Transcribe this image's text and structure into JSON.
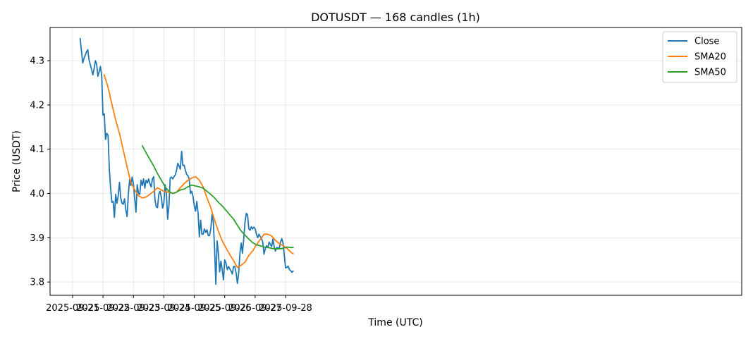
{
  "chart_data": {
    "type": "line",
    "title": "DOTUSDT — 168 candles (1h)",
    "xlabel": "Time (UTC)",
    "ylabel": "Price (USDT)",
    "x_start": "2025-09-21 06:00",
    "x_interval_hours": 1,
    "x_tick_labels": [
      "2025-09-21",
      "2025-09-22",
      "2025-09-23",
      "2025-09-24",
      "2025-09-25",
      "2025-09-26",
      "2025-09-27",
      "2025-09-28"
    ],
    "y_tick_labels": [
      "3.8",
      "3.9",
      "4.0",
      "4.1",
      "4.2",
      "4.3"
    ],
    "ylim": [
      3.77,
      4.375
    ],
    "grid": true,
    "legend_position": "top-right",
    "series": [
      {
        "name": "Close",
        "color": "#1f77b4",
        "start_index": 0,
        "anchors": [
          [
            0,
            4.35
          ],
          [
            2,
            4.295
          ],
          [
            3,
            4.305
          ],
          [
            5,
            4.32
          ],
          [
            6,
            4.325
          ],
          [
            7,
            4.302
          ],
          [
            9,
            4.28
          ],
          [
            10,
            4.268
          ],
          [
            11,
            4.282
          ],
          [
            12,
            4.3
          ],
          [
            13,
            4.292
          ],
          [
            14,
            4.265
          ],
          [
            15,
            4.275
          ],
          [
            16,
            4.287
          ],
          [
            17,
            4.265
          ],
          [
            18,
            4.177
          ],
          [
            19,
            4.18
          ],
          [
            20,
            4.122
          ],
          [
            21,
            4.136
          ],
          [
            22,
            4.132
          ],
          [
            23,
            4.055
          ],
          [
            24,
            4.012
          ],
          [
            25,
            3.98
          ],
          [
            26,
            3.982
          ],
          [
            27,
            3.946
          ],
          [
            28,
            3.998
          ],
          [
            29,
            3.978
          ],
          [
            30,
            3.995
          ],
          [
            31,
            4.025
          ],
          [
            32,
            3.99
          ],
          [
            33,
            3.978
          ],
          [
            34,
            3.976
          ],
          [
            35,
            3.988
          ],
          [
            36,
            3.963
          ],
          [
            37,
            3.948
          ],
          [
            38,
            3.998
          ],
          [
            39,
            4.032
          ],
          [
            40,
            4.018
          ],
          [
            41,
            4.037
          ],
          [
            42,
            4.022
          ],
          [
            43,
            3.988
          ],
          [
            44,
            3.958
          ],
          [
            45,
            4.02
          ],
          [
            46,
            4.0
          ],
          [
            47,
            3.998
          ],
          [
            48,
            4.03
          ],
          [
            49,
            4.018
          ],
          [
            50,
            4.033
          ],
          [
            51,
            4.012
          ],
          [
            52,
            4.03
          ],
          [
            53,
            4.024
          ],
          [
            54,
            4.033
          ],
          [
            55,
            4.022
          ],
          [
            56,
            4.015
          ],
          [
            57,
            4.033
          ],
          [
            58,
            4.038
          ],
          [
            59,
            3.985
          ],
          [
            60,
            3.97
          ],
          [
            61,
            3.968
          ],
          [
            62,
            3.998
          ],
          [
            63,
            4.005
          ],
          [
            64,
            3.992
          ],
          [
            65,
            3.967
          ],
          [
            66,
            3.978
          ],
          [
            67,
            4.02
          ],
          [
            68,
            4.0
          ],
          [
            69,
            3.942
          ],
          [
            70,
            3.972
          ],
          [
            71,
            4.035
          ],
          [
            72,
            4.037
          ],
          [
            73,
            4.033
          ],
          [
            74,
            4.038
          ],
          [
            75,
            4.042
          ],
          [
            76,
            4.052
          ],
          [
            77,
            4.068
          ],
          [
            78,
            4.062
          ],
          [
            79,
            4.055
          ],
          [
            80,
            4.095
          ],
          [
            81,
            4.063
          ],
          [
            82,
            4.064
          ],
          [
            83,
            4.052
          ],
          [
            84,
            4.043
          ],
          [
            85,
            4.04
          ],
          [
            86,
            4.033
          ],
          [
            87,
            4.0
          ],
          [
            88,
            4.005
          ],
          [
            89,
            3.993
          ],
          [
            90,
            3.972
          ],
          [
            91,
            3.96
          ],
          [
            92,
            3.982
          ],
          [
            93,
            3.955
          ],
          [
            94,
            3.902
          ],
          [
            95,
            3.94
          ],
          [
            96,
            3.908
          ],
          [
            97,
            3.908
          ],
          [
            98,
            3.92
          ],
          [
            99,
            3.912
          ],
          [
            100,
            3.918
          ],
          [
            101,
            3.905
          ],
          [
            102,
            3.905
          ],
          [
            103,
            3.92
          ],
          [
            104,
            3.952
          ],
          [
            105,
            3.935
          ],
          [
            106,
            3.875
          ],
          [
            107,
            3.795
          ],
          [
            108,
            3.893
          ],
          [
            109,
            3.865
          ],
          [
            110,
            3.823
          ],
          [
            111,
            3.847
          ],
          [
            112,
            3.828
          ],
          [
            113,
            3.805
          ],
          [
            114,
            3.85
          ],
          [
            115,
            3.843
          ],
          [
            116,
            3.828
          ],
          [
            117,
            3.835
          ],
          [
            118,
            3.83
          ],
          [
            119,
            3.825
          ],
          [
            120,
            3.818
          ],
          [
            121,
            3.835
          ],
          [
            122,
            3.835
          ],
          [
            123,
            3.82
          ],
          [
            124,
            3.797
          ],
          [
            125,
            3.82
          ],
          [
            126,
            3.865
          ],
          [
            127,
            3.888
          ],
          [
            128,
            3.865
          ],
          [
            129,
            3.898
          ],
          [
            130,
            3.935
          ],
          [
            131,
            3.955
          ],
          [
            132,
            3.952
          ],
          [
            133,
            3.92
          ],
          [
            134,
            3.917
          ],
          [
            135,
            3.925
          ],
          [
            136,
            3.92
          ],
          [
            137,
            3.924
          ],
          [
            138,
            3.92
          ],
          [
            139,
            3.908
          ],
          [
            140,
            3.9
          ],
          [
            141,
            3.908
          ],
          [
            142,
            3.903
          ],
          [
            143,
            3.898
          ],
          [
            144,
            3.89
          ],
          [
            145,
            3.863
          ],
          [
            146,
            3.875
          ],
          [
            147,
            3.882
          ],
          [
            148,
            3.878
          ],
          [
            149,
            3.89
          ],
          [
            150,
            3.885
          ],
          [
            151,
            3.88
          ],
          [
            152,
            3.897
          ],
          [
            153,
            3.88
          ],
          [
            154,
            3.87
          ],
          [
            155,
            3.878
          ],
          [
            156,
            3.877
          ],
          [
            157,
            3.876
          ],
          [
            158,
            3.89
          ],
          [
            159,
            3.898
          ],
          [
            160,
            3.888
          ],
          [
            161,
            3.86
          ],
          [
            162,
            3.832
          ],
          [
            163,
            3.833
          ],
          [
            164,
            3.836
          ],
          [
            165,
            3.828
          ],
          [
            166,
            3.826
          ],
          [
            167,
            3.822
          ],
          [
            168,
            3.825
          ]
        ]
      },
      {
        "name": "SMA20",
        "color": "#ff7f0e",
        "start_index": 19,
        "anchors": [
          [
            19,
            4.268
          ],
          [
            22,
            4.24
          ],
          [
            25,
            4.202
          ],
          [
            28,
            4.166
          ],
          [
            31,
            4.136
          ],
          [
            34,
            4.098
          ],
          [
            37,
            4.06
          ],
          [
            40,
            4.025
          ],
          [
            43,
            4.008
          ],
          [
            46,
            3.995
          ],
          [
            49,
            3.99
          ],
          [
            52,
            3.992
          ],
          [
            55,
            3.998
          ],
          [
            58,
            4.005
          ],
          [
            61,
            4.013
          ],
          [
            64,
            4.008
          ],
          [
            67,
            4.004
          ],
          [
            70,
            4.003
          ],
          [
            73,
            4.0
          ],
          [
            76,
            4.003
          ],
          [
            79,
            4.013
          ],
          [
            82,
            4.022
          ],
          [
            85,
            4.03
          ],
          [
            88,
            4.035
          ],
          [
            91,
            4.038
          ],
          [
            94,
            4.03
          ],
          [
            97,
            4.015
          ],
          [
            100,
            3.99
          ],
          [
            103,
            3.968
          ],
          [
            106,
            3.94
          ],
          [
            109,
            3.915
          ],
          [
            112,
            3.893
          ],
          [
            115,
            3.877
          ],
          [
            118,
            3.862
          ],
          [
            121,
            3.848
          ],
          [
            124,
            3.833
          ],
          [
            127,
            3.838
          ],
          [
            130,
            3.845
          ],
          [
            133,
            3.86
          ],
          [
            136,
            3.87
          ],
          [
            139,
            3.884
          ],
          [
            142,
            3.896
          ],
          [
            145,
            3.908
          ],
          [
            148,
            3.908
          ],
          [
            151,
            3.904
          ],
          [
            154,
            3.894
          ],
          [
            157,
            3.887
          ],
          [
            160,
            3.882
          ],
          [
            163,
            3.876
          ],
          [
            166,
            3.868
          ],
          [
            168,
            3.864
          ]
        ]
      },
      {
        "name": "SMA50",
        "color": "#2ca02c",
        "start_index": 49,
        "anchors": [
          [
            49,
            4.108
          ],
          [
            52,
            4.092
          ],
          [
            55,
            4.077
          ],
          [
            58,
            4.062
          ],
          [
            61,
            4.045
          ],
          [
            64,
            4.03
          ],
          [
            67,
            4.015
          ],
          [
            70,
            4.005
          ],
          [
            73,
            4.0
          ],
          [
            76,
            4.003
          ],
          [
            79,
            4.008
          ],
          [
            82,
            4.01
          ],
          [
            85,
            4.015
          ],
          [
            88,
            4.019
          ],
          [
            91,
            4.017
          ],
          [
            94,
            4.015
          ],
          [
            97,
            4.012
          ],
          [
            100,
            4.005
          ],
          [
            103,
            3.998
          ],
          [
            106,
            3.99
          ],
          [
            109,
            3.98
          ],
          [
            112,
            3.972
          ],
          [
            115,
            3.962
          ],
          [
            118,
            3.952
          ],
          [
            121,
            3.942
          ],
          [
            124,
            3.928
          ],
          [
            127,
            3.915
          ],
          [
            130,
            3.906
          ],
          [
            133,
            3.897
          ],
          [
            136,
            3.889
          ],
          [
            139,
            3.884
          ],
          [
            142,
            3.882
          ],
          [
            145,
            3.879
          ],
          [
            148,
            3.878
          ],
          [
            151,
            3.876
          ],
          [
            154,
            3.875
          ],
          [
            157,
            3.875
          ],
          [
            160,
            3.876
          ],
          [
            163,
            3.879
          ],
          [
            166,
            3.878
          ],
          [
            168,
            3.878
          ]
        ]
      }
    ]
  }
}
